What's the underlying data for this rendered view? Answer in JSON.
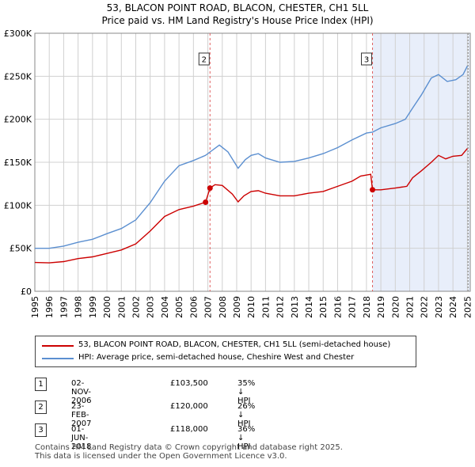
{
  "title_line1": "53, BLACON POINT ROAD, BLACON, CHESTER, CH1 5LL",
  "title_line2": "Price paid vs. HM Land Registry's House Price Index (HPI)",
  "colors": {
    "property": "#cc0000",
    "hpi": "#5b8fd0",
    "shade": "#e8eefa",
    "marker_line": "#e06060"
  },
  "legend": {
    "property_label": "53, BLACON POINT ROAD, BLACON, CHESTER, CH1 5LL (semi-detached house)",
    "hpi_label": "HPI: Average price, semi-detached house, Cheshire West and Chester"
  },
  "transactions": [
    {
      "num": "1",
      "date": "02-NOV-2006",
      "price": "£103,500",
      "hpi": "35% ↓ HPI"
    },
    {
      "num": "2",
      "date": "23-FEB-2007",
      "price": "£120,000",
      "hpi": "26% ↓ HPI"
    },
    {
      "num": "3",
      "date": "01-JUN-2018",
      "price": "£118,000",
      "hpi": "36% ↓ HPI"
    }
  ],
  "footer_line1": "Contains HM Land Registry data © Crown copyright and database right 2025.",
  "footer_line2": "This data is licensed under the Open Government Licence v3.0.",
  "chart_data": {
    "type": "line",
    "title": "53, BLACON POINT ROAD, BLACON, CHESTER, CH1 5LL — Price paid vs. HM Land Registry's House Price Index (HPI)",
    "xlabel": "",
    "ylabel": "",
    "xlim": [
      1995,
      2025.2
    ],
    "ylim": [
      0,
      300000
    ],
    "yticks": [
      0,
      50000,
      100000,
      150000,
      200000,
      250000,
      300000
    ],
    "ytick_labels": [
      "£0",
      "£50K",
      "£100K",
      "£150K",
      "£200K",
      "£250K",
      "£300K"
    ],
    "xticks": [
      1995,
      1996,
      1997,
      1998,
      1999,
      2000,
      2001,
      2002,
      2003,
      2004,
      2005,
      2006,
      2007,
      2008,
      2009,
      2010,
      2011,
      2012,
      2013,
      2014,
      2015,
      2016,
      2017,
      2018,
      2019,
      2020,
      2021,
      2022,
      2023,
      2024,
      2025
    ],
    "xtick_labels": [
      "1995",
      "1996",
      "1997",
      "1998",
      "1999",
      "2000",
      "2001",
      "2002",
      "2003",
      "2004",
      "2005",
      "2006",
      "2007",
      "2008",
      "2009",
      "2010",
      "2011",
      "2012",
      "2013",
      "2014",
      "2015",
      "2016",
      "2017",
      "2018",
      "2019",
      "2020",
      "2021",
      "2022",
      "2023",
      "2024",
      "2025"
    ],
    "grid": true,
    "legend_position": "below",
    "shaded_region": [
      2018.42,
      2025.2
    ],
    "markers": [
      {
        "label": "2",
        "x": 2007.15,
        "y": 120000,
        "show_box": true
      },
      {
        "label": "3",
        "x": 2018.42,
        "y": 118000,
        "show_box": true
      },
      {
        "label": "1",
        "x": 2006.84,
        "y": 103500,
        "show_box": false
      }
    ],
    "series": [
      {
        "name": "53, BLACON POINT ROAD, BLACON, CHESTER, CH1 5LL (semi-detached house)",
        "color": "#cc0000",
        "points": [
          [
            1995,
            33500
          ],
          [
            1996,
            33000
          ],
          [
            1997,
            34500
          ],
          [
            1998,
            38000
          ],
          [
            1999,
            40000
          ],
          [
            2000,
            44000
          ],
          [
            2001,
            48000
          ],
          [
            2002,
            55000
          ],
          [
            2003,
            70000
          ],
          [
            2004,
            87000
          ],
          [
            2005,
            95000
          ],
          [
            2006,
            99000
          ],
          [
            2006.84,
            103500
          ],
          [
            2007.15,
            120000
          ],
          [
            2007.5,
            124000
          ],
          [
            2008,
            123000
          ],
          [
            2008.7,
            113000
          ],
          [
            2009.1,
            104000
          ],
          [
            2009.5,
            111000
          ],
          [
            2010,
            116000
          ],
          [
            2010.5,
            117000
          ],
          [
            2011,
            114000
          ],
          [
            2012,
            111000
          ],
          [
            2013,
            111000
          ],
          [
            2014,
            114000
          ],
          [
            2015,
            116000
          ],
          [
            2016,
            122000
          ],
          [
            2017,
            128000
          ],
          [
            2017.6,
            134000
          ],
          [
            2018.3,
            136000
          ],
          [
            2018.42,
            118000
          ],
          [
            2019,
            118000
          ],
          [
            2020,
            120000
          ],
          [
            2020.8,
            122000
          ],
          [
            2021.2,
            132000
          ],
          [
            2021.8,
            140000
          ],
          [
            2022.5,
            150000
          ],
          [
            2023,
            158000
          ],
          [
            2023.5,
            154000
          ],
          [
            2024,
            157000
          ],
          [
            2024.6,
            158000
          ],
          [
            2025,
            166000
          ]
        ]
      },
      {
        "name": "HPI: Average price, semi-detached house, Cheshire West and Chester",
        "color": "#5b8fd0",
        "points": [
          [
            1995,
            50000
          ],
          [
            1996,
            50000
          ],
          [
            1997,
            52500
          ],
          [
            1998,
            57000
          ],
          [
            1999,
            60500
          ],
          [
            2000,
            67000
          ],
          [
            2001,
            73000
          ],
          [
            2002,
            83000
          ],
          [
            2003,
            103000
          ],
          [
            2004,
            128000
          ],
          [
            2005,
            146000
          ],
          [
            2006,
            152000
          ],
          [
            2006.84,
            158000
          ],
          [
            2007.15,
            162000
          ],
          [
            2007.8,
            170000
          ],
          [
            2008.4,
            162000
          ],
          [
            2009.1,
            143000
          ],
          [
            2009.6,
            153000
          ],
          [
            2010,
            158000
          ],
          [
            2010.5,
            160000
          ],
          [
            2011,
            155000
          ],
          [
            2012,
            150000
          ],
          [
            2013,
            151000
          ],
          [
            2014,
            155000
          ],
          [
            2015,
            160000
          ],
          [
            2016,
            167000
          ],
          [
            2017,
            176000
          ],
          [
            2018,
            184000
          ],
          [
            2018.42,
            185000
          ],
          [
            2019,
            190000
          ],
          [
            2020,
            195000
          ],
          [
            2020.7,
            200000
          ],
          [
            2021.2,
            213000
          ],
          [
            2021.8,
            228000
          ],
          [
            2022.5,
            248000
          ],
          [
            2023,
            252000
          ],
          [
            2023.6,
            244000
          ],
          [
            2024.2,
            246000
          ],
          [
            2024.7,
            252000
          ],
          [
            2025,
            262000
          ]
        ]
      }
    ]
  }
}
